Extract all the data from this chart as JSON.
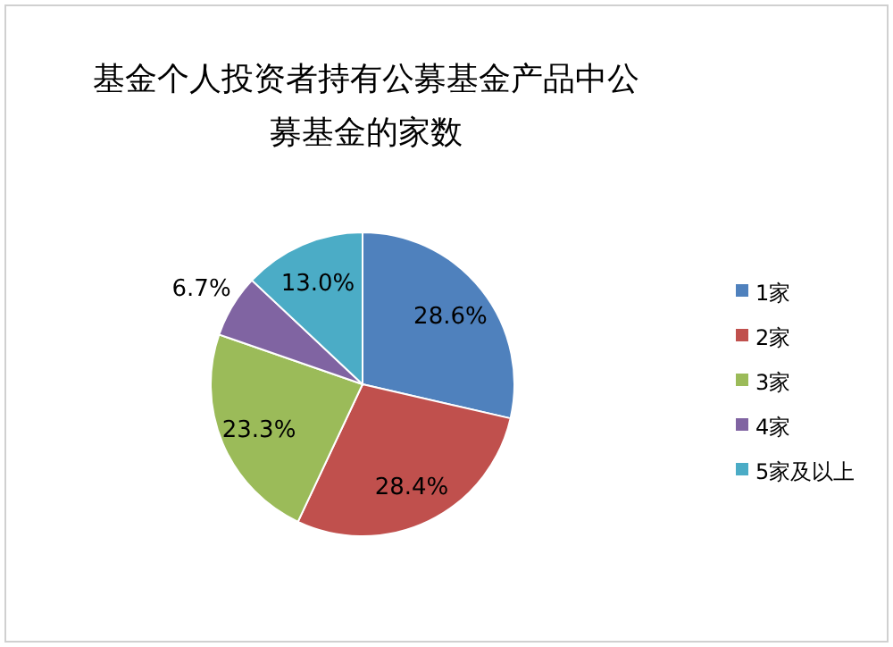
{
  "chart_data": {
    "type": "pie",
    "title": "基金个人投资者持有公募基金产品中公募基金的家数",
    "categories": [
      "1家",
      "2家",
      "3家",
      "4家",
      "5家及以上"
    ],
    "values": [
      28.6,
      28.4,
      23.3,
      6.7,
      13.0
    ],
    "colors": [
      "#4f81bd",
      "#c0504d",
      "#9bbb59",
      "#8064a2",
      "#4bacc6"
    ],
    "value_labels": [
      "28.6%",
      "28.4%",
      "23.3%",
      "6.7%",
      "13.0%"
    ],
    "legend": "right"
  }
}
